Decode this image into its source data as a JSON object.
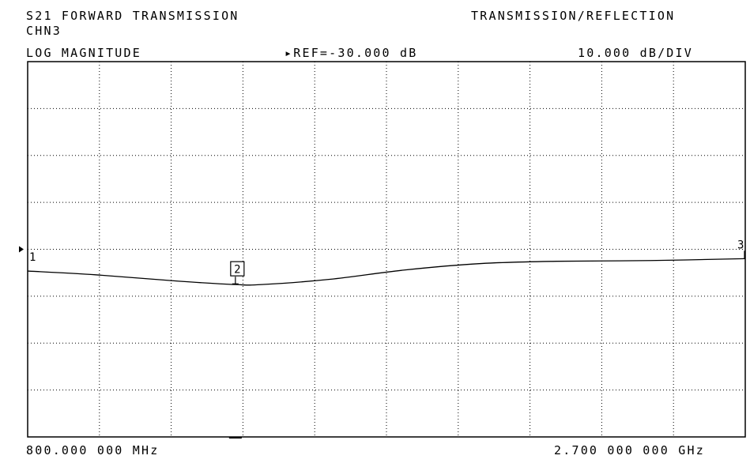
{
  "header": {
    "measurement": "S21 FORWARD TRANSMISSION",
    "mode": "TRANSMISSION/REFLECTION",
    "channel": "CHN3",
    "format": "LOG MAGNITUDE",
    "reference": "▸REF=-30.000 dB",
    "scale": "10.000 dB/DIV"
  },
  "footer": {
    "start_freq": "800.000 000 MHz",
    "stop_freq": "2.700 000 000 GHz"
  },
  "chart_data": {
    "type": "line",
    "xlabel": "",
    "ylabel": "",
    "x_unit": "GHz",
    "y_unit": "dB",
    "xlim": [
      0.8,
      2.7
    ],
    "ylim": [
      -80,
      20
    ],
    "reference_level_db": -30,
    "scale_db_per_div": 10,
    "grid": true,
    "series": [
      {
        "x": [
          0.8,
          0.98,
          1.2,
          1.35,
          1.42,
          1.6,
          1.8,
          2.0,
          2.2,
          2.45,
          2.7
        ],
        "y": [
          -35.8,
          -36.8,
          -38.5,
          -39.4,
          -39.4,
          -38.0,
          -35.5,
          -33.8,
          -33.2,
          -33.0,
          -32.5
        ]
      }
    ],
    "markers": [
      {
        "label": "1",
        "x": 0.8,
        "y": -35.8
      },
      {
        "label": "2",
        "x": 1.35,
        "y": -39.4
      },
      {
        "label": "3",
        "x": 2.7,
        "y": -32.5
      }
    ]
  }
}
